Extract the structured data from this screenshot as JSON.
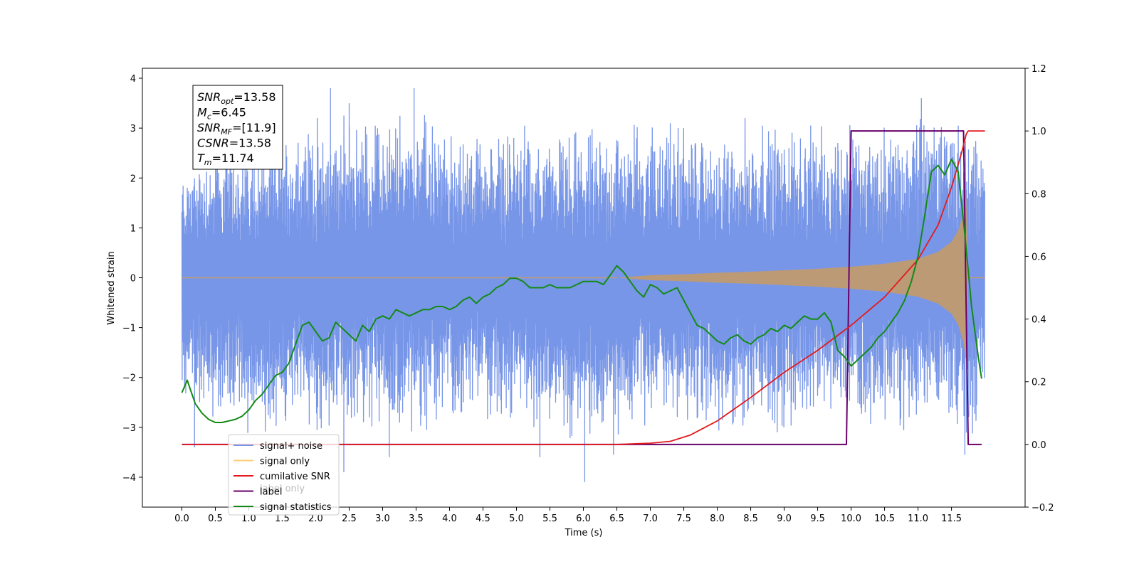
{
  "chart_data": {
    "type": "line",
    "title": "",
    "xlabel": "Time (s)",
    "ylabel": "Whitened strain",
    "xlim": [
      -0.59,
      12.6
    ],
    "ylim": [
      -4.6,
      4.2
    ],
    "y2lim": [
      -0.2,
      1.2
    ],
    "grid": false,
    "x_ticks": [
      "0.0",
      "0.5",
      "1.0",
      "1.5",
      "2.0",
      "2.5",
      "3.0",
      "3.5",
      "4.0",
      "4.5",
      "5.0",
      "5.5",
      "6.0",
      "6.5",
      "7.0",
      "7.5",
      "8.0",
      "8.5",
      "9.0",
      "9.5",
      "10.0",
      "10.5",
      "11.0",
      "11.5"
    ],
    "y_ticks": [
      "4",
      "3",
      "2",
      "1",
      "0",
      "−1",
      "−2",
      "−3",
      "−4"
    ],
    "y2_ticks": [
      "1.2",
      "1.0",
      "0.8",
      "0.6",
      "0.4",
      "0.2",
      "0.0",
      "−0.2"
    ],
    "annotation": {
      "lines": [
        {
          "base": "SNR",
          "sub": "opt",
          "rest": "=13.58"
        },
        {
          "base": "M",
          "sub": "c",
          "rest": "=6.45"
        },
        {
          "base": "SNR",
          "sub": "MF",
          "rest": "=[11.9]"
        },
        {
          "base": "CSNR",
          "sub": "",
          "rest": "=13.58"
        },
        {
          "base": "T",
          "sub": "m",
          "rest": "=11.74"
        }
      ]
    },
    "legend": {
      "placement": "lower-left",
      "entries": [
        "signal+ noise",
        "signal only",
        "cumilative SNR",
        "label",
        "signal statistics"
      ],
      "overlap_text": "label only"
    },
    "series": [
      {
        "name": "signal+ noise",
        "axis": "left",
        "color": "#7896e8",
        "envelope_x": [
          0.0,
          0.5,
          1.0,
          1.5,
          2.0,
          2.5,
          3.0,
          3.5,
          4.0,
          4.5,
          5.0,
          5.5,
          6.0,
          6.5,
          7.0,
          7.5,
          8.0,
          8.5,
          9.0,
          9.5,
          10.0,
          10.5,
          11.0,
          11.5,
          11.8,
          12.0
        ],
        "envelope_upper": [
          2.3,
          2.9,
          2.9,
          3.2,
          3.3,
          3.4,
          3.3,
          3.8,
          3.0,
          3.1,
          3.2,
          3.1,
          3.1,
          3.2,
          3.4,
          3.3,
          3.0,
          3.4,
          3.3,
          3.1,
          3.3,
          3.2,
          3.5,
          3.7,
          3.2,
          3.0
        ],
        "envelope_lower": [
          -2.5,
          -3.0,
          -3.3,
          -3.2,
          -3.4,
          -3.2,
          -3.3,
          -3.3,
          -3.0,
          -3.1,
          -3.0,
          -3.1,
          -3.5,
          -3.5,
          -3.1,
          -3.0,
          -3.2,
          -3.3,
          -3.4,
          -3.1,
          -3.2,
          -3.1,
          -3.2,
          -3.2,
          -3.5,
          -2.5
        ],
        "spikes": [
          {
            "x": 6.02,
            "y": -4.1
          },
          {
            "x": 3.1,
            "y": -3.6
          },
          {
            "x": 2.42,
            "y": -3.9
          },
          {
            "x": 0.19,
            "y": -3.4
          },
          {
            "x": 6.45,
            "y": -3.55
          },
          {
            "x": 5.35,
            "y": -3.6
          },
          {
            "x": 11.7,
            "y": -3.55
          },
          {
            "x": 2.22,
            "y": 3.8
          },
          {
            "x": 3.47,
            "y": 3.8
          },
          {
            "x": 2.5,
            "y": 3.5
          },
          {
            "x": 11.05,
            "y": 3.6
          }
        ]
      },
      {
        "name": "signal only",
        "axis": "left",
        "color": "#c09a70",
        "x": [
          0.0,
          6.5,
          7.0,
          7.5,
          8.0,
          8.5,
          9.0,
          9.5,
          10.0,
          10.5,
          11.0,
          11.3,
          11.5,
          11.6,
          11.68,
          11.72,
          11.75,
          11.8,
          12.0
        ],
        "amplitude": [
          0.0,
          0.0,
          0.05,
          0.07,
          0.1,
          0.12,
          0.15,
          0.18,
          0.22,
          0.28,
          0.38,
          0.52,
          0.72,
          0.95,
          1.3,
          1.7,
          0.0,
          0.0,
          0.0
        ]
      },
      {
        "name": "cumilative SNR",
        "axis": "right",
        "color": "#e31a1c",
        "x": [
          0.0,
          6.5,
          7.0,
          7.3,
          7.6,
          8.0,
          8.5,
          9.0,
          9.5,
          10.0,
          10.5,
          11.0,
          11.3,
          11.5,
          11.65,
          11.72,
          11.75,
          12.0
        ],
        "y": [
          0.0,
          0.0,
          0.004,
          0.01,
          0.03,
          0.075,
          0.15,
          0.23,
          0.3,
          0.38,
          0.47,
          0.59,
          0.7,
          0.82,
          0.93,
          0.99,
          1.0,
          1.0
        ]
      },
      {
        "name": "label",
        "axis": "right",
        "color": "#6a006a",
        "x": [
          0.0,
          9.93,
          10.0,
          11.68,
          11.75,
          11.95
        ],
        "y": [
          0.0,
          0.0,
          1.0,
          1.0,
          0.0,
          0.0
        ]
      },
      {
        "name": "signal statistics",
        "axis": "right",
        "color": "#138a16",
        "x": [
          0.0,
          0.08,
          0.12,
          0.2,
          0.3,
          0.4,
          0.5,
          0.6,
          0.7,
          0.8,
          0.9,
          1.0,
          1.1,
          1.2,
          1.3,
          1.4,
          1.5,
          1.6,
          1.7,
          1.8,
          1.9,
          2.0,
          2.1,
          2.2,
          2.3,
          2.4,
          2.5,
          2.6,
          2.7,
          2.8,
          2.9,
          3.0,
          3.1,
          3.2,
          3.3,
          3.4,
          3.5,
          3.6,
          3.7,
          3.8,
          3.9,
          4.0,
          4.1,
          4.2,
          4.3,
          4.4,
          4.5,
          4.6,
          4.7,
          4.8,
          4.9,
          5.0,
          5.1,
          5.2,
          5.3,
          5.4,
          5.5,
          5.6,
          5.7,
          5.8,
          5.9,
          6.0,
          6.1,
          6.2,
          6.3,
          6.4,
          6.5,
          6.6,
          6.7,
          6.8,
          6.9,
          7.0,
          7.1,
          7.2,
          7.3,
          7.4,
          7.5,
          7.6,
          7.7,
          7.8,
          7.9,
          8.0,
          8.1,
          8.2,
          8.3,
          8.4,
          8.5,
          8.6,
          8.7,
          8.8,
          8.9,
          9.0,
          9.1,
          9.2,
          9.3,
          9.4,
          9.5,
          9.6,
          9.7,
          9.8,
          9.9,
          10.0,
          10.1,
          10.2,
          10.3,
          10.4,
          10.5,
          10.6,
          10.7,
          10.8,
          10.9,
          11.0,
          11.1,
          11.2,
          11.3,
          11.4,
          11.5,
          11.6,
          11.7,
          11.8,
          11.9,
          11.95
        ],
        "y": [
          0.165,
          0.205,
          0.18,
          0.13,
          0.1,
          0.08,
          0.07,
          0.07,
          0.075,
          0.08,
          0.09,
          0.11,
          0.14,
          0.16,
          0.19,
          0.22,
          0.23,
          0.26,
          0.32,
          0.38,
          0.39,
          0.36,
          0.33,
          0.34,
          0.39,
          0.37,
          0.35,
          0.33,
          0.38,
          0.36,
          0.4,
          0.41,
          0.4,
          0.43,
          0.42,
          0.41,
          0.42,
          0.43,
          0.43,
          0.44,
          0.44,
          0.43,
          0.44,
          0.46,
          0.47,
          0.45,
          0.47,
          0.48,
          0.5,
          0.51,
          0.53,
          0.53,
          0.52,
          0.5,
          0.5,
          0.5,
          0.51,
          0.5,
          0.5,
          0.5,
          0.51,
          0.52,
          0.52,
          0.52,
          0.51,
          0.54,
          0.57,
          0.55,
          0.52,
          0.49,
          0.47,
          0.51,
          0.5,
          0.48,
          0.49,
          0.5,
          0.46,
          0.42,
          0.38,
          0.37,
          0.35,
          0.33,
          0.32,
          0.34,
          0.35,
          0.33,
          0.32,
          0.34,
          0.35,
          0.37,
          0.36,
          0.38,
          0.37,
          0.39,
          0.41,
          0.4,
          0.4,
          0.42,
          0.39,
          0.3,
          0.28,
          0.25,
          0.27,
          0.29,
          0.31,
          0.34,
          0.36,
          0.39,
          0.42,
          0.46,
          0.52,
          0.6,
          0.73,
          0.87,
          0.89,
          0.86,
          0.91,
          0.87,
          0.67,
          0.44,
          0.28,
          0.21
        ]
      }
    ]
  }
}
